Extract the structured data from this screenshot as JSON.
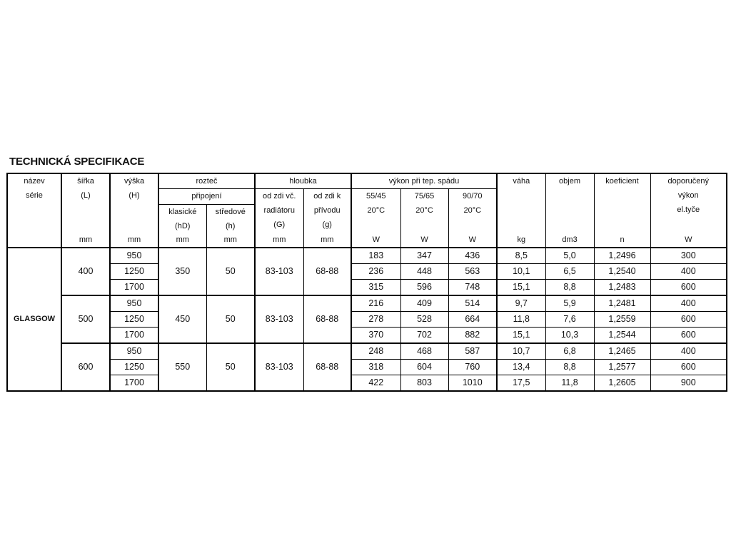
{
  "title": "TECHNICKÁ SPECIFIKACE",
  "header": {
    "series": [
      "název",
      "série"
    ],
    "width": [
      "šířka",
      "(L)",
      "mm"
    ],
    "height": [
      "výška",
      "(H)",
      "mm"
    ],
    "pitch": "rozteč",
    "connection": "připojení",
    "classic": [
      "klasické",
      "(hD)",
      "mm"
    ],
    "center": [
      "středové",
      "(h)",
      "mm"
    ],
    "depth": "hloubka",
    "depth_g": [
      "od zdi  vč.",
      "radiátoru",
      "(G)",
      "mm"
    ],
    "depth_small_g": [
      "od zdi  k",
      "přívodu",
      "(g)",
      "mm"
    ],
    "output": "výkon při tep.  spádu",
    "out1": [
      "55/45",
      "20°C",
      "W"
    ],
    "out2": [
      "75/65",
      "20°C",
      "W"
    ],
    "out3": [
      "90/70",
      "20°C",
      "W"
    ],
    "weight": [
      "váha",
      "kg"
    ],
    "volume": [
      "objem",
      "dm3"
    ],
    "coef": [
      "koeficient",
      "n"
    ],
    "rec": [
      "doporučený",
      "výkon",
      "el.tyče",
      "W"
    ]
  },
  "series_name": "GLASGOW",
  "groups": [
    {
      "width": "400",
      "hD": "350",
      "h": "50",
      "G": "83-103",
      "g": "68-88",
      "rows": [
        [
          "950",
          "183",
          "347",
          "436",
          "8,5",
          "5,0",
          "1,2496",
          "300"
        ],
        [
          "1250",
          "236",
          "448",
          "563",
          "10,1",
          "6,5",
          "1,2540",
          "400"
        ],
        [
          "1700",
          "315",
          "596",
          "748",
          "15,1",
          "8,8",
          "1,2483",
          "600"
        ]
      ]
    },
    {
      "width": "500",
      "hD": "450",
      "h": "50",
      "G": "83-103",
      "g": "68-88",
      "rows": [
        [
          "950",
          "216",
          "409",
          "514",
          "9,7",
          "5,9",
          "1,2481",
          "400"
        ],
        [
          "1250",
          "278",
          "528",
          "664",
          "11,8",
          "7,6",
          "1,2559",
          "600"
        ],
        [
          "1700",
          "370",
          "702",
          "882",
          "15,1",
          "10,3",
          "1,2544",
          "600"
        ]
      ]
    },
    {
      "width": "600",
      "hD": "550",
      "h": "50",
      "G": "83-103",
      "g": "68-88",
      "rows": [
        [
          "950",
          "248",
          "468",
          "587",
          "10,7",
          "6,8",
          "1,2465",
          "400"
        ],
        [
          "1250",
          "318",
          "604",
          "760",
          "13,4",
          "8,8",
          "1,2577",
          "600"
        ],
        [
          "1700",
          "422",
          "803",
          "1010",
          "17,5",
          "11,8",
          "1,2605",
          "900"
        ]
      ]
    }
  ]
}
